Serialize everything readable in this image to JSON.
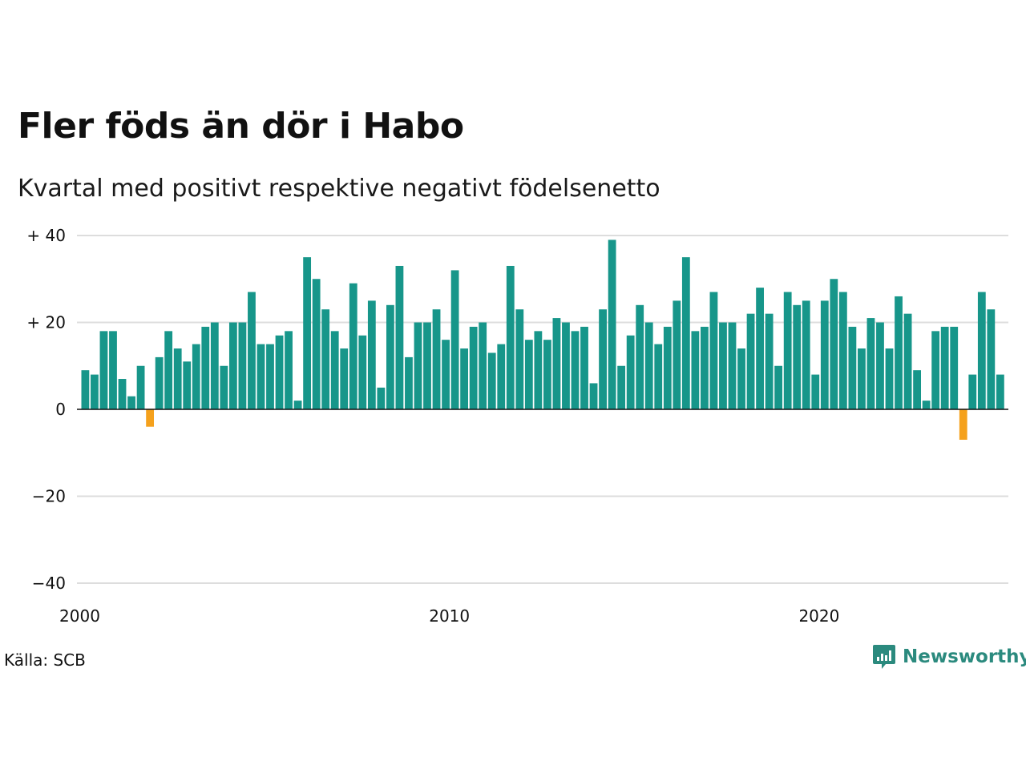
{
  "chart_data": {
    "type": "bar",
    "title": "Fler föds än dör i Habo",
    "subtitle": "Kvartal med positivt respektive negativt födelsenetto",
    "xlabel": "",
    "ylabel": "",
    "ylim": [
      -40,
      40
    ],
    "yticks": [
      {
        "value": 40,
        "label": "+ 40"
      },
      {
        "value": 20,
        "label": "+ 20"
      },
      {
        "value": 0,
        "label": "0"
      },
      {
        "value": -20,
        "label": "−20"
      },
      {
        "value": -40,
        "label": "−40"
      }
    ],
    "xticks": [
      "2000",
      "2010",
      "2020"
    ],
    "start": "2000 Q1",
    "frequency": "quarterly",
    "values": [
      9,
      8,
      18,
      18,
      7,
      3,
      10,
      -4,
      12,
      18,
      14,
      11,
      15,
      19,
      20,
      10,
      20,
      20,
      27,
      15,
      15,
      17,
      18,
      2,
      35,
      30,
      23,
      18,
      14,
      29,
      17,
      25,
      5,
      24,
      33,
      12,
      20,
      20,
      23,
      16,
      32,
      14,
      19,
      20,
      13,
      15,
      33,
      23,
      16,
      18,
      16,
      21,
      20,
      18,
      19,
      6,
      23,
      39,
      10,
      17,
      24,
      20,
      15,
      19,
      25,
      35,
      18,
      19,
      27,
      20,
      20,
      14,
      22,
      28,
      22,
      10,
      27,
      24,
      25,
      8,
      25,
      30,
      27,
      19,
      14,
      21,
      20,
      14,
      26,
      22,
      9,
      2,
      18,
      19,
      19,
      -7,
      8,
      27,
      23,
      8
    ],
    "colors": {
      "positive": "#17968a",
      "negative": "#f5a11c"
    },
    "grid": true
  },
  "source": "Källa: SCB",
  "brand": {
    "name": "Newsworthy",
    "icon": "chat-bubble-bar-chart-icon",
    "color": "#2b8a7e"
  }
}
